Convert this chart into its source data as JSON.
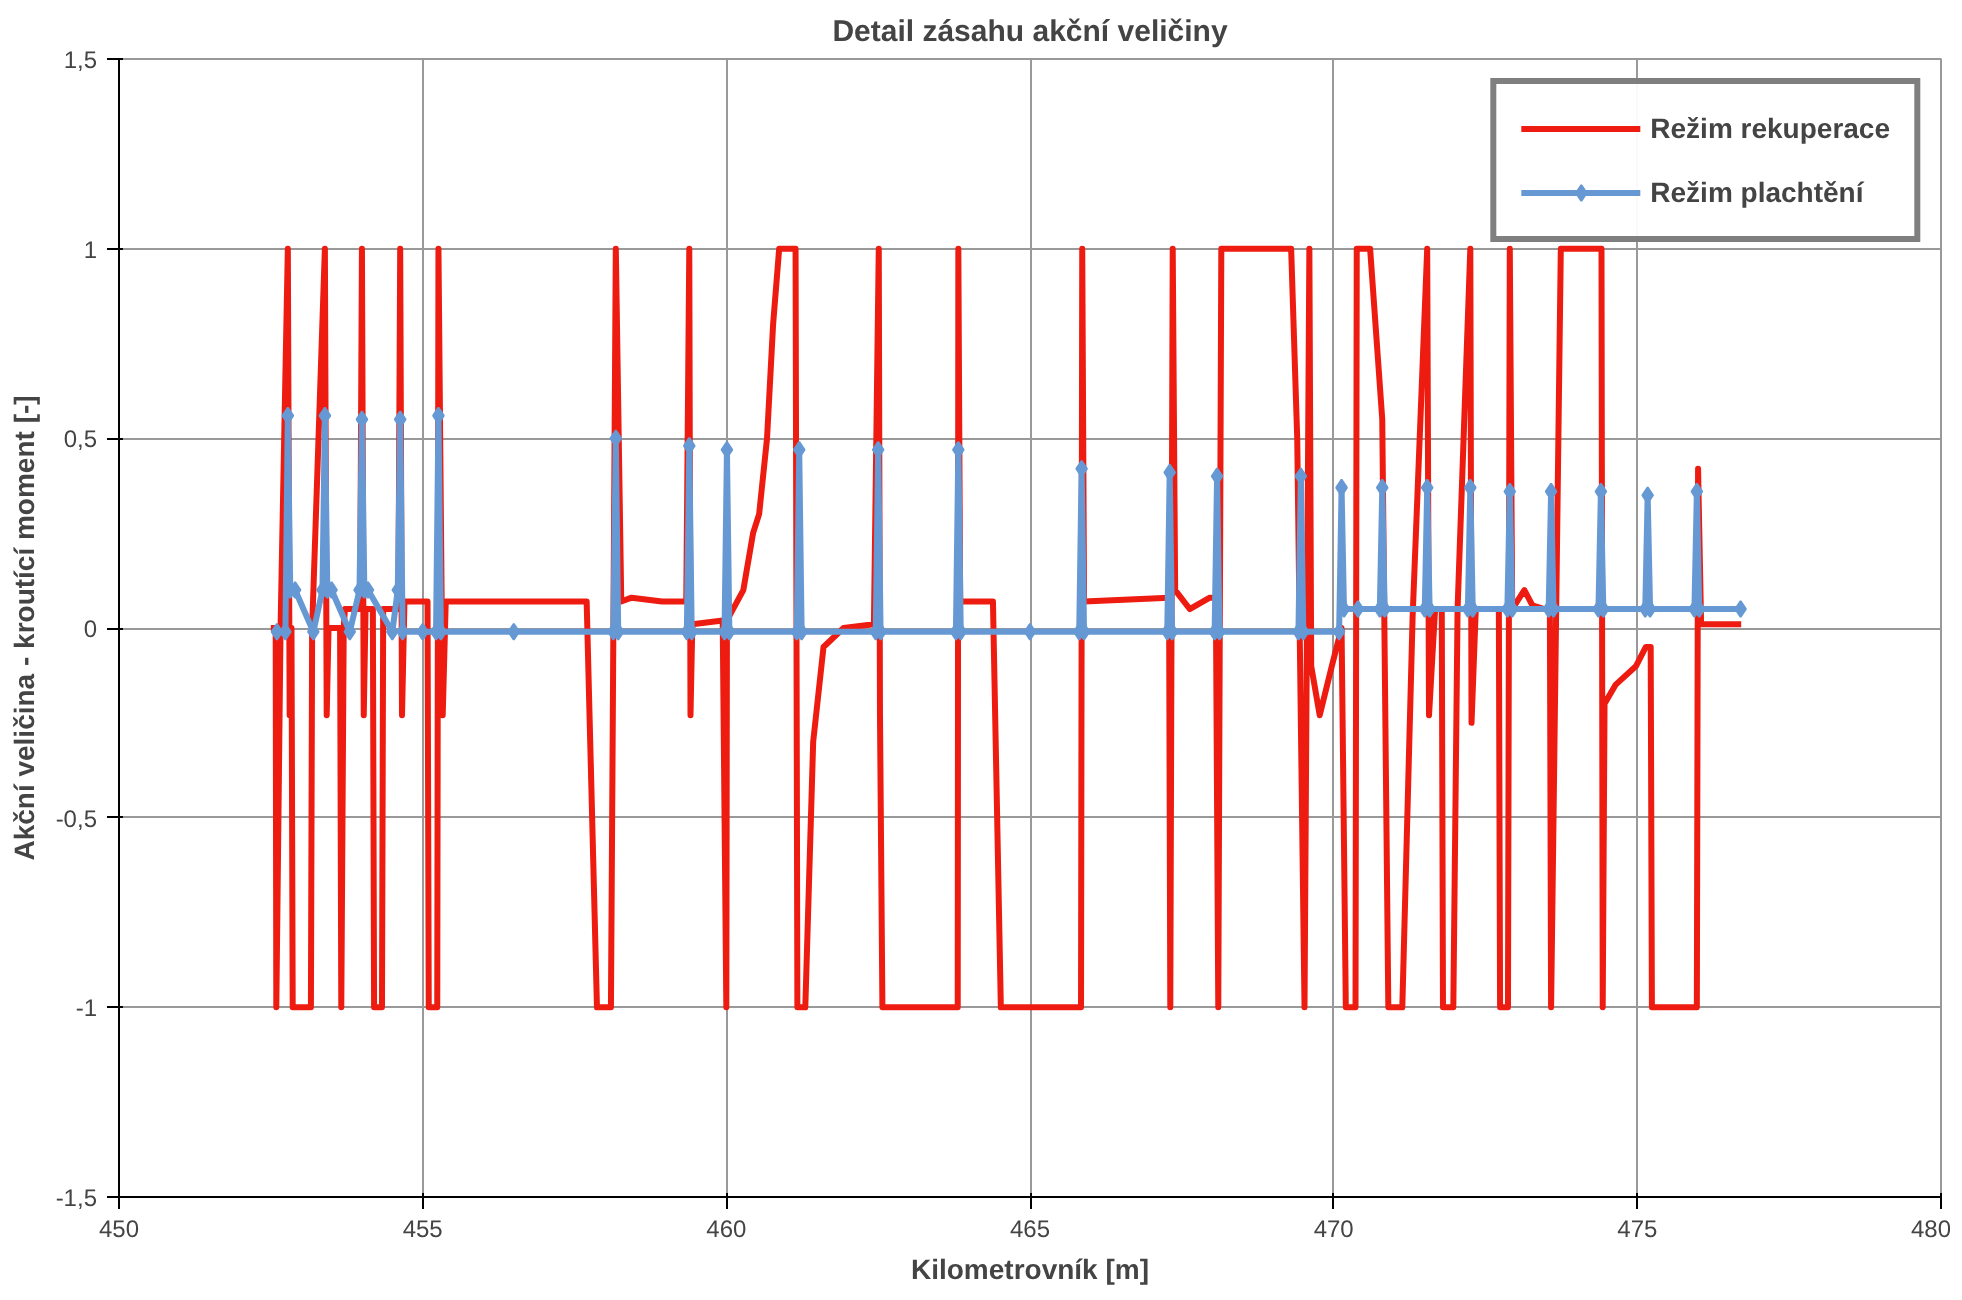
{
  "chart_data": {
    "type": "line",
    "title": "Detail zásahu akční veličiny",
    "xlabel": "Kilometrovník [m]",
    "ylabel": "Akční veličina - kroutící moment [-]",
    "xlim": [
      450,
      480
    ],
    "xticks": [
      450,
      455,
      460,
      465,
      470,
      475,
      480
    ],
    "ylim": [
      -1.5,
      1.5
    ],
    "yticks": [
      {
        "value": -1.5,
        "label": "-1,5"
      },
      -1,
      {
        "value": -0.5,
        "label": "-0,5"
      },
      0,
      {
        "value": 0.5,
        "label": "0,5"
      },
      1,
      {
        "value": 1.5,
        "label": "1,5"
      }
    ],
    "grid": true,
    "legend": "top right",
    "series": [
      {
        "name": "Režim rekuperace",
        "color": "#ee1c10",
        "marker": "none",
        "x": [
          452.5,
          452.58,
          452.59,
          452.66,
          452.78,
          452.81,
          452.84,
          452.86,
          453.16,
          453.18,
          453.39,
          453.42,
          453.45,
          453.64,
          453.66,
          453.7,
          453.72,
          453.97,
          454.0,
          454.03,
          454.06,
          454.18,
          454.2,
          454.33,
          454.35,
          454.6,
          454.63,
          454.66,
          454.7,
          455.08,
          455.1,
          455.24,
          455.26,
          455.33,
          455.38,
          455.49,
          457.7,
          457.87,
          458.1,
          458.18,
          458.27,
          458.44,
          458.94,
          459.34,
          459.39,
          459.41,
          459.44,
          459.94,
          460.0,
          460.01,
          460.28,
          460.44,
          460.54,
          460.67,
          460.77,
          460.87,
          461.04,
          461.14,
          461.17,
          461.3,
          461.43,
          461.6,
          461.93,
          462.43,
          462.51,
          462.53,
          462.57,
          463.81,
          463.82,
          463.85,
          464.39,
          464.52,
          465.84,
          465.86,
          465.89,
          467.29,
          467.31,
          467.35,
          467.39,
          467.63,
          467.96,
          468.06,
          468.1,
          468.15,
          469.3,
          469.4,
          469.52,
          469.6,
          469.63,
          469.77,
          469.97,
          470.13,
          470.2,
          470.36,
          470.38,
          470.6,
          470.8,
          470.9,
          471.13,
          471.3,
          471.54,
          471.57,
          471.67,
          471.78,
          471.8,
          471.97,
          472.04,
          472.25,
          472.27,
          472.34,
          472.72,
          472.74,
          472.87,
          472.9,
          472.94,
          473.14,
          473.27,
          473.47,
          473.56,
          473.58,
          473.74,
          474.41,
          474.43,
          474.46,
          474.64,
          474.98,
          475.14,
          475.22,
          475.24,
          475.98,
          476.0,
          476.05,
          476.71
        ],
        "values": [
          0,
          0,
          -1,
          0,
          1,
          -0.23,
          0,
          -1,
          -1,
          0,
          1,
          -0.23,
          0,
          0,
          -1,
          0,
          0.05,
          0.05,
          1,
          -0.23,
          0.05,
          0.05,
          -1,
          -1,
          0.05,
          0.05,
          1,
          -0.23,
          0.07,
          0.07,
          -1,
          -1,
          1,
          -0.23,
          0.07,
          0.07,
          0.07,
          -1,
          -1,
          1,
          0.07,
          0.08,
          0.07,
          0.07,
          1,
          -0.23,
          0.01,
          0.02,
          -1,
          0.02,
          0.1,
          0.25,
          0.3,
          0.5,
          0.8,
          1,
          1,
          1,
          -1,
          -1,
          -0.3,
          -0.05,
          0,
          0.01,
          1,
          -0.23,
          -1,
          -1,
          1,
          0.07,
          0.07,
          -1,
          -1,
          1,
          0.07,
          0.08,
          -1,
          1,
          0.1,
          0.05,
          0.08,
          0.08,
          -1,
          1,
          1,
          0.5,
          -1,
          1,
          -0.1,
          -0.23,
          -0.1,
          0,
          -1,
          -1,
          1,
          1,
          0.55,
          -1,
          -1,
          0.03,
          1,
          -0.23,
          0.05,
          0.05,
          -1,
          -1,
          0.05,
          1,
          -0.25,
          0.05,
          0.05,
          -1,
          -1,
          1,
          0.05,
          0.1,
          0.06,
          0.05,
          0.05,
          -1,
          1,
          1,
          -1,
          -0.2,
          -0.15,
          -0.1,
          -0.05,
          -0.05,
          -1,
          -1,
          0.42,
          0.01,
          0.01
        ]
      },
      {
        "name": "Režim plachtění",
        "color": "#6699d4",
        "marker": "diamond",
        "x": [
          452.6,
          452.74,
          452.78,
          452.82,
          452.9,
          453.2,
          453.35,
          453.39,
          453.43,
          453.5,
          453.8,
          453.96,
          454.0,
          454.04,
          454.1,
          454.5,
          454.59,
          454.63,
          454.67,
          455.0,
          455.22,
          455.26,
          455.3,
          456.5,
          458.14,
          458.18,
          458.22,
          459.35,
          459.39,
          459.43,
          459.97,
          460.01,
          460.05,
          461.16,
          461.2,
          461.24,
          462.46,
          462.5,
          462.54,
          463.78,
          463.82,
          463.86,
          465.0,
          465.81,
          465.85,
          465.89,
          467.26,
          467.3,
          467.34,
          468.04,
          468.08,
          468.12,
          469.42,
          469.46,
          469.5,
          470.09,
          470.13,
          470.17,
          470.4,
          470.76,
          470.8,
          470.84,
          471.5,
          471.54,
          471.58,
          472.21,
          472.25,
          472.29,
          472.86,
          472.9,
          472.94,
          473.54,
          473.58,
          473.62,
          474.36,
          474.4,
          474.44,
          475.13,
          475.17,
          475.21,
          475.94,
          475.98,
          476.02,
          476.7
        ],
        "values": [
          -0.01,
          -0.01,
          0.56,
          0.1,
          0.1,
          -0.01,
          0.1,
          0.56,
          0.1,
          0.1,
          -0.01,
          0.1,
          0.55,
          0.1,
          0.1,
          -0.01,
          0.1,
          0.55,
          -0.01,
          -0.01,
          -0.01,
          0.56,
          -0.01,
          -0.01,
          -0.01,
          0.5,
          -0.01,
          -0.01,
          0.48,
          -0.01,
          -0.01,
          0.47,
          -0.01,
          -0.01,
          0.47,
          -0.01,
          -0.01,
          0.47,
          -0.01,
          -0.01,
          0.47,
          -0.01,
          -0.01,
          -0.01,
          0.42,
          -0.01,
          -0.01,
          0.41,
          -0.01,
          -0.01,
          0.4,
          -0.01,
          -0.01,
          0.4,
          -0.01,
          -0.01,
          0.37,
          0.05,
          0.05,
          0.05,
          0.37,
          0.05,
          0.05,
          0.37,
          0.05,
          0.05,
          0.37,
          0.05,
          0.05,
          0.36,
          0.05,
          0.05,
          0.36,
          0.05,
          0.05,
          0.36,
          0.05,
          0.05,
          0.35,
          0.05,
          0.05,
          0.36,
          0.05,
          0.05
        ]
      }
    ]
  }
}
